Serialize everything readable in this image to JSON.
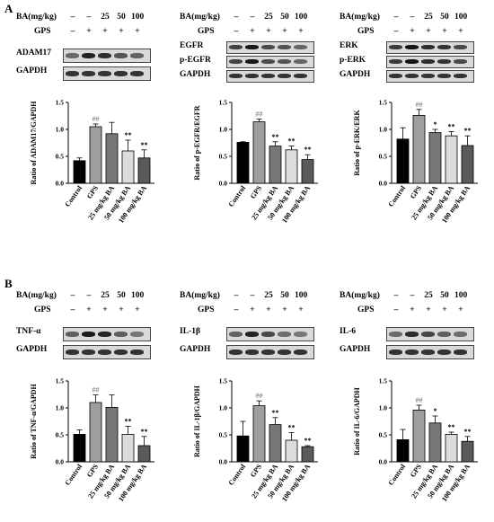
{
  "panel_a_label": "A",
  "panel_b_label": "B",
  "dose_header": "BA(mg/kg)",
  "gps_header": "GPS",
  "dose_signs": [
    "–",
    "–",
    "25",
    "50",
    "100"
  ],
  "gps_signs": [
    "–",
    "+",
    "+",
    "+",
    "+"
  ],
  "colors": {
    "control": "#000000",
    "gps": "#9e9e9e",
    "ba25": "#777777",
    "ba50": "#dcdcdc",
    "ba100": "#5a5a5a",
    "sig_gray": "#888888"
  },
  "cells": [
    {
      "blots": [
        "ADAM17",
        "GAPDH"
      ]
    },
    {
      "blots": [
        "EGFR",
        "p-EGFR",
        "GAPDH"
      ]
    },
    {
      "blots": [
        "ERK",
        "p-ERK",
        "GAPDH"
      ]
    },
    {
      "blots": [
        "TNF-α",
        "GAPDH"
      ]
    },
    {
      "blots": [
        "IL-1β",
        "GAPDH"
      ]
    },
    {
      "blots": [
        "IL-6",
        "GAPDH"
      ]
    }
  ],
  "chart_data": [
    {
      "type": "bar",
      "ylabel": "Ratio of ADAM17/GAPDH",
      "ylim": [
        0,
        1.5
      ],
      "yticks": [
        "0.0",
        "0.5",
        "1.0",
        "1.5"
      ],
      "categories": [
        "Control",
        "GPS",
        "25 mg/kg BA",
        "50 mg/kg BA",
        "100 mg/kg BA"
      ],
      "values": [
        0.42,
        1.05,
        0.92,
        0.6,
        0.47
      ],
      "errors": [
        0.05,
        0.05,
        0.21,
        0.2,
        0.15
      ],
      "annotations": [
        "",
        "##",
        "",
        "**",
        "**"
      ]
    },
    {
      "type": "bar",
      "ylabel": "Ratio of p-EGFR/EGFR",
      "ylim": [
        0,
        1.5
      ],
      "yticks": [
        "0.0",
        "0.5",
        "1.0",
        "1.5"
      ],
      "categories": [
        "Control",
        "GPS",
        "25 mg/kg BA",
        "50 mg/kg BA",
        "100 mg/kg BA"
      ],
      "values": [
        0.76,
        1.14,
        0.69,
        0.62,
        0.44
      ],
      "errors": [
        0.01,
        0.05,
        0.08,
        0.07,
        0.09
      ],
      "annotations": [
        "",
        "##",
        "**",
        "**",
        "**"
      ]
    },
    {
      "type": "bar",
      "ylabel": "Ratio of p-ERK/ERK",
      "ylim": [
        0,
        1.5
      ],
      "yticks": [
        "0.0",
        "0.5",
        "1.0",
        "1.5"
      ],
      "categories": [
        "Control",
        "GPS",
        "25 mg/kg BA",
        "50 mg/kg BA",
        "100 mg/kg BA"
      ],
      "values": [
        0.82,
        1.26,
        0.94,
        0.88,
        0.7
      ],
      "errors": [
        0.21,
        0.11,
        0.06,
        0.08,
        0.18
      ],
      "annotations": [
        "",
        "##",
        "*",
        "**",
        "**"
      ]
    },
    {
      "type": "bar",
      "ylabel": "Ratio of TNF-α/GAPDH",
      "ylim": [
        0,
        1.5
      ],
      "yticks": [
        "0.0",
        "0.5",
        "1.0",
        "1.5"
      ],
      "categories": [
        "Control",
        "GPS",
        "25 mg/kg BA",
        "50 mg/kg BA",
        "100 mg/kg BA"
      ],
      "values": [
        0.51,
        1.1,
        1.01,
        0.51,
        0.3
      ],
      "errors": [
        0.08,
        0.14,
        0.23,
        0.15,
        0.17
      ],
      "annotations": [
        "",
        "##",
        "",
        "**",
        "**"
      ]
    },
    {
      "type": "bar",
      "ylabel": "Ratio of IL-1β/GAPDH",
      "ylim": [
        0,
        1.5
      ],
      "yticks": [
        "0.0",
        "0.5",
        "1.0",
        "1.5"
      ],
      "categories": [
        "Control",
        "GPS",
        "25 mg/kg BA",
        "50 mg/kg BA",
        "100 mg/kg BA"
      ],
      "values": [
        0.48,
        1.04,
        0.69,
        0.4,
        0.28
      ],
      "errors": [
        0.27,
        0.09,
        0.13,
        0.14,
        0.02
      ],
      "annotations": [
        "",
        "##",
        "**",
        "**",
        "**"
      ]
    },
    {
      "type": "bar",
      "ylabel": "Ratio of IL-6/GAPDH",
      "ylim": [
        0,
        1.5
      ],
      "yticks": [
        "0.0",
        "0.5",
        "1.0",
        "1.5"
      ],
      "categories": [
        "Control",
        "GPS",
        "25 mg/kg BA",
        "50 mg/kg BA",
        "100 mg/kg BA"
      ],
      "values": [
        0.41,
        0.96,
        0.72,
        0.51,
        0.38
      ],
      "errors": [
        0.19,
        0.09,
        0.13,
        0.04,
        0.09
      ],
      "annotations": [
        "",
        "##",
        "*",
        "**",
        "**"
      ]
    }
  ]
}
